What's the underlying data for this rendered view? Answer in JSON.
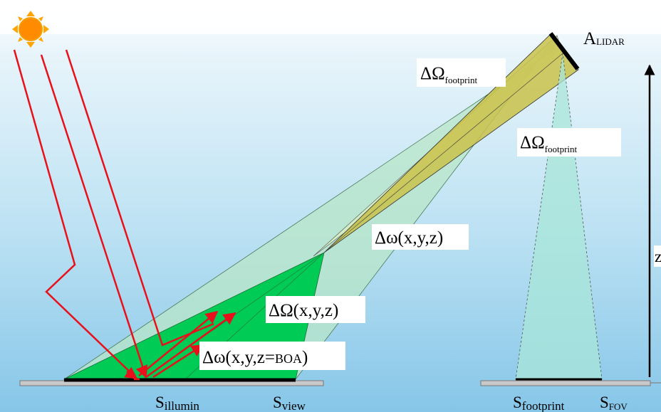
{
  "labels": {
    "a_lidar": {
      "main": "A",
      "sub": "LIDAR"
    },
    "omega_footprint_top": {
      "main": "ΔΩ",
      "sub": "footprint"
    },
    "omega_footprint_right": {
      "main": "ΔΩ",
      "sub": "footprint"
    },
    "small_omega_xyz": "Δω(x,y,z)",
    "big_omega_xyz": "ΔΩ(x,y,z)",
    "small_omega_boa": {
      "main": "Δω(x,y,z=",
      "small": "BOA",
      "end": ")"
    },
    "z_axis": "z",
    "s_illumin": {
      "main": "S",
      "sub": "illumin"
    },
    "s_view": {
      "main": "S",
      "sub": "view"
    },
    "s_footprint": {
      "main": "S",
      "sub": "footprint"
    },
    "s_fov": {
      "main": "S",
      "sub": "FOV"
    }
  },
  "colors": {
    "sky_top": "#ffffff",
    "sky_bottom": "#8ec9ea",
    "sun": "#ff8c00",
    "sun_inner": "#ffa500",
    "ray": "#e8101a",
    "bright_green": "#00cc55",
    "light_green": "#b8e6c8",
    "lidar_beam": "#c9c24a",
    "fov_cone": "#a8e6d8",
    "ground_strip": "#c8c8c8"
  }
}
